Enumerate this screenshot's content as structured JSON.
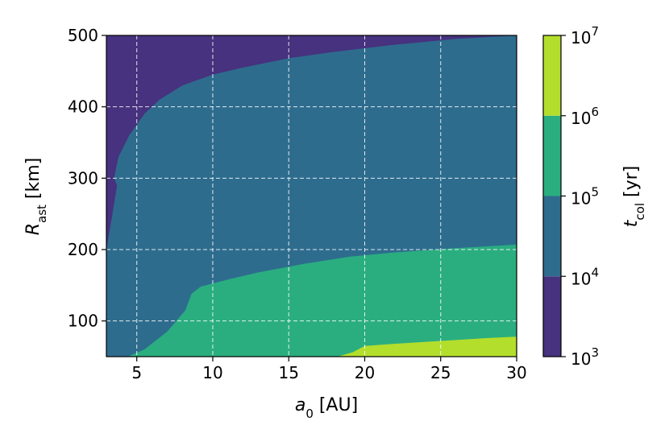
{
  "chart_data": {
    "type": "contourf",
    "xlabel": {
      "base": "a",
      "sub": "0",
      "unit": " [AU]"
    },
    "ylabel": {
      "base": "R",
      "sub": "ast",
      "unit": " [km]"
    },
    "colorbar_label": {
      "base": "t",
      "sub": "col",
      "unit": " [yr]"
    },
    "xlim": [
      3,
      30
    ],
    "ylim": [
      50,
      500
    ],
    "xticks": [
      5,
      10,
      15,
      20,
      25,
      30
    ],
    "yticks": [
      100,
      200,
      300,
      400,
      500
    ],
    "grid": true,
    "colorbar": {
      "scale": "log",
      "tick_exponents": [
        "3",
        "4",
        "5",
        "6",
        "7"
      ],
      "tick_base": "10",
      "levels": [
        {
          "from": "1e3",
          "to": "1e4",
          "color": "#46327e"
        },
        {
          "from": "1e4",
          "to": "1e5",
          "color": "#2e6c8e"
        },
        {
          "from": "1e5",
          "to": "1e6",
          "color": "#2aae80"
        },
        {
          "from": "1e6",
          "to": "1e7",
          "color": "#b4de2c"
        }
      ]
    },
    "regions": [
      {
        "level": "1e3-1e4",
        "boundary_upper_edge_to_1e4": [
          [
            3.0,
            200
          ],
          [
            3.4,
            250
          ],
          [
            3.7,
            290
          ],
          [
            3.5,
            300
          ],
          [
            3.8,
            330
          ],
          [
            4.5,
            360
          ],
          [
            5.5,
            390
          ],
          [
            6.5,
            410
          ],
          [
            8,
            430
          ],
          [
            10,
            445
          ],
          [
            12,
            455
          ],
          [
            15,
            468
          ],
          [
            18,
            477
          ],
          [
            22,
            487
          ],
          [
            26,
            495
          ],
          [
            30,
            500
          ]
        ]
      },
      {
        "level": "1e5-1e6",
        "boundary_lower_edge_from_1e4": [
          [
            4.4,
            50
          ],
          [
            5.5,
            60
          ],
          [
            7,
            85
          ],
          [
            8.2,
            115
          ],
          [
            8.6,
            138
          ],
          [
            9.2,
            148
          ],
          [
            11,
            158
          ],
          [
            13,
            168
          ],
          [
            16,
            180
          ],
          [
            19,
            190
          ],
          [
            22,
            196
          ],
          [
            26,
            202
          ],
          [
            30,
            207
          ]
        ]
      },
      {
        "level": "1e6-1e7",
        "boundary_lower_edge_from_1e5": [
          [
            18.2,
            50
          ],
          [
            19.2,
            56
          ],
          [
            20,
            65
          ],
          [
            22,
            68
          ],
          [
            25,
            72
          ],
          [
            28,
            76
          ],
          [
            30,
            78
          ]
        ]
      }
    ]
  }
}
